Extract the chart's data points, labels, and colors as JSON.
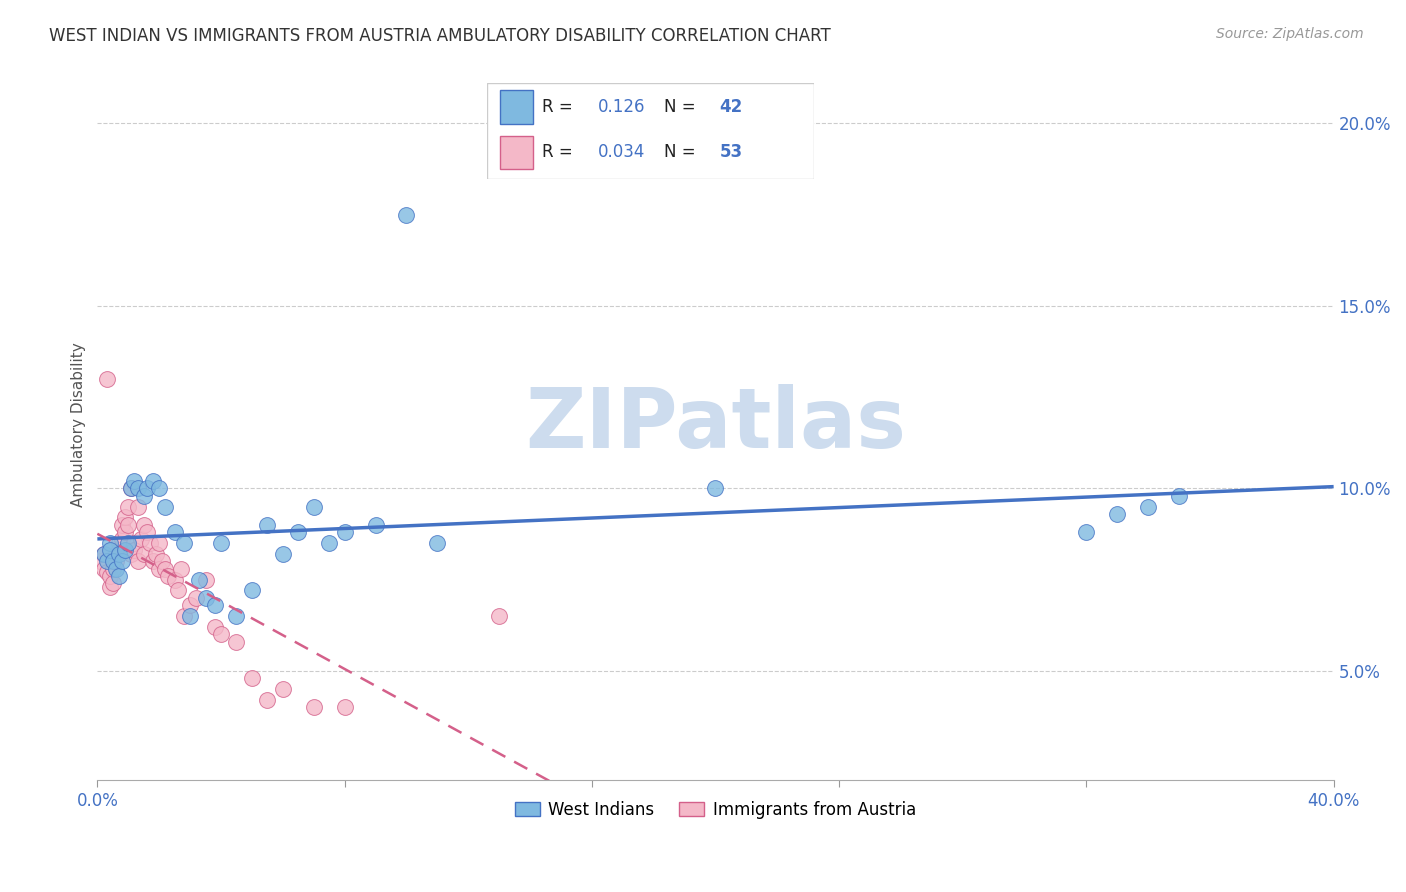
{
  "title": "WEST INDIAN VS IMMIGRANTS FROM AUSTRIA AMBULATORY DISABILITY CORRELATION CHART",
  "source": "Source: ZipAtlas.com",
  "ylabel": "Ambulatory Disability",
  "yticks": [
    0.05,
    0.1,
    0.15,
    0.2
  ],
  "ytick_labels": [
    "5.0%",
    "10.0%",
    "15.0%",
    "20.0%"
  ],
  "xlim": [
    0.0,
    0.4
  ],
  "ylim": [
    0.02,
    0.215
  ],
  "legend1_label": "West Indians",
  "legend2_label": "Immigrants from Austria",
  "R1": 0.126,
  "N1": 42,
  "R2": 0.034,
  "N2": 53,
  "color_blue": "#7fb9e0",
  "color_pink": "#f4b8c8",
  "color_line_blue": "#4472c4",
  "color_line_pink": "#d4608a",
  "color_axis_blue": "#4472c4",
  "watermark_color": "#cddcee",
  "west_indians_x": [
    0.002,
    0.003,
    0.004,
    0.004,
    0.005,
    0.006,
    0.007,
    0.007,
    0.008,
    0.009,
    0.01,
    0.011,
    0.012,
    0.013,
    0.015,
    0.016,
    0.018,
    0.02,
    0.022,
    0.025,
    0.028,
    0.03,
    0.033,
    0.035,
    0.038,
    0.04,
    0.045,
    0.05,
    0.055,
    0.06,
    0.065,
    0.07,
    0.075,
    0.08,
    0.09,
    0.1,
    0.11,
    0.2,
    0.32,
    0.33,
    0.34,
    0.35
  ],
  "west_indians_y": [
    0.082,
    0.08,
    0.085,
    0.083,
    0.08,
    0.078,
    0.076,
    0.082,
    0.08,
    0.083,
    0.085,
    0.1,
    0.102,
    0.1,
    0.098,
    0.1,
    0.102,
    0.1,
    0.095,
    0.088,
    0.085,
    0.065,
    0.075,
    0.07,
    0.068,
    0.085,
    0.065,
    0.072,
    0.09,
    0.082,
    0.088,
    0.095,
    0.085,
    0.088,
    0.09,
    0.175,
    0.085,
    0.1,
    0.088,
    0.093,
    0.095,
    0.098
  ],
  "austria_x": [
    0.001,
    0.002,
    0.002,
    0.003,
    0.003,
    0.004,
    0.004,
    0.005,
    0.005,
    0.006,
    0.006,
    0.007,
    0.007,
    0.008,
    0.008,
    0.009,
    0.009,
    0.01,
    0.01,
    0.011,
    0.011,
    0.012,
    0.012,
    0.013,
    0.013,
    0.014,
    0.015,
    0.015,
    0.016,
    0.017,
    0.018,
    0.019,
    0.02,
    0.02,
    0.021,
    0.022,
    0.023,
    0.025,
    0.026,
    0.027,
    0.028,
    0.03,
    0.032,
    0.035,
    0.038,
    0.04,
    0.045,
    0.05,
    0.055,
    0.06,
    0.07,
    0.08,
    0.13
  ],
  "austria_y": [
    0.08,
    0.082,
    0.078,
    0.13,
    0.077,
    0.073,
    0.076,
    0.074,
    0.078,
    0.08,
    0.082,
    0.085,
    0.083,
    0.086,
    0.09,
    0.088,
    0.092,
    0.09,
    0.095,
    0.1,
    0.082,
    0.085,
    0.083,
    0.08,
    0.095,
    0.086,
    0.09,
    0.082,
    0.088,
    0.085,
    0.08,
    0.082,
    0.085,
    0.078,
    0.08,
    0.078,
    0.076,
    0.075,
    0.072,
    0.078,
    0.065,
    0.068,
    0.07,
    0.075,
    0.062,
    0.06,
    0.058,
    0.048,
    0.042,
    0.045,
    0.04,
    0.04,
    0.065
  ]
}
